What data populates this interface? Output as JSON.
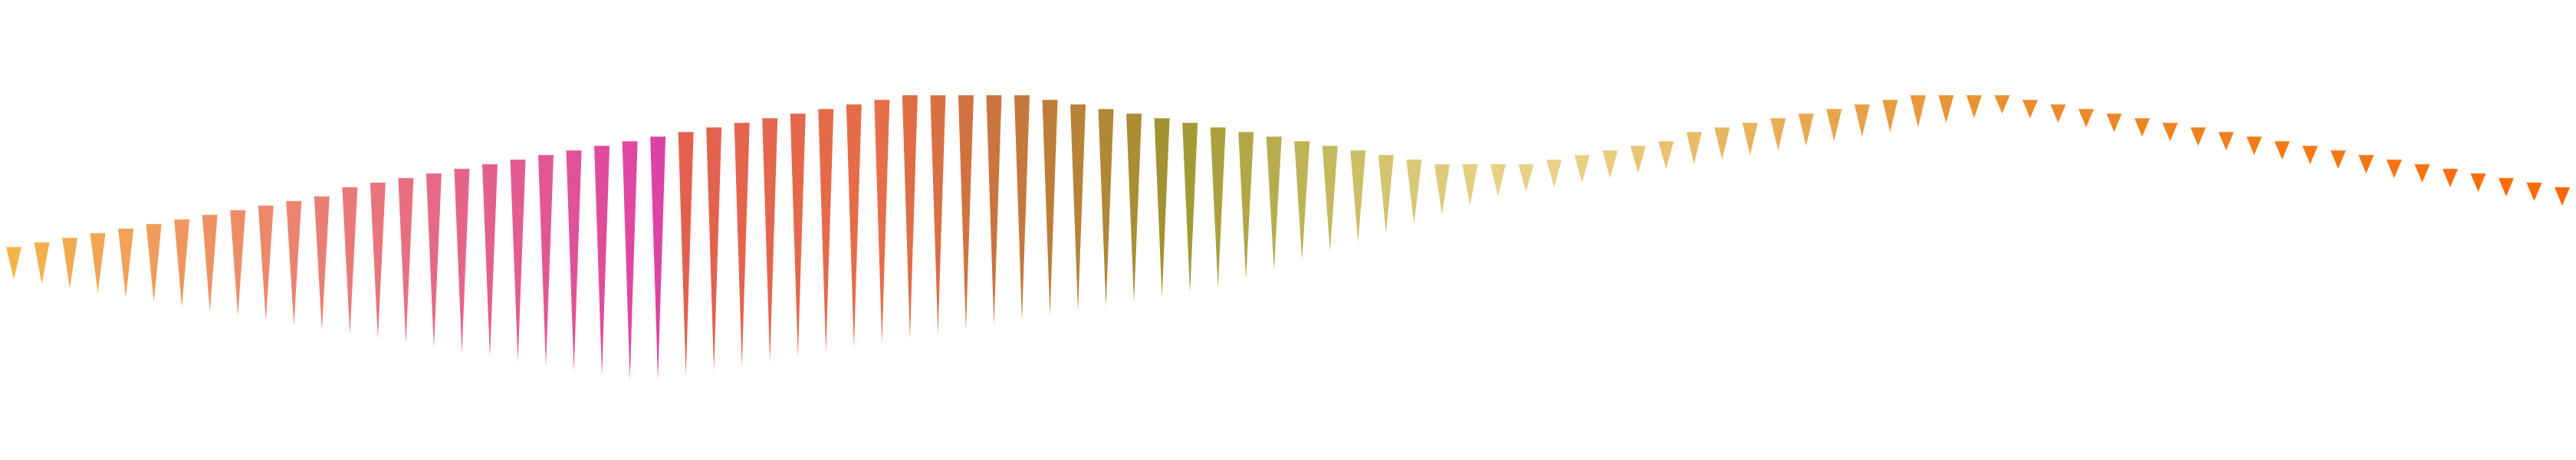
{
  "chart_data": {
    "type": "bar",
    "title": "",
    "xlabel": "",
    "ylabel": "",
    "grid": false,
    "legend": "none",
    "x_start": 0,
    "x_end": 1,
    "ylim": [
      0,
      1
    ],
    "tops": [
      0.463,
      0.473,
      0.483,
      0.493,
      0.503,
      0.513,
      0.523,
      0.533,
      0.543,
      0.553,
      0.563,
      0.573,
      0.593,
      0.603,
      0.613,
      0.623,
      0.633,
      0.643,
      0.653,
      0.663,
      0.673,
      0.683,
      0.693,
      0.703,
      0.713,
      0.723,
      0.733,
      0.743,
      0.753,
      0.763,
      0.773,
      0.783,
      0.793,
      0.793,
      0.793,
      0.793,
      0.793,
      0.783,
      0.773,
      0.763,
      0.753,
      0.743,
      0.733,
      0.723,
      0.713,
      0.703,
      0.693,
      0.683,
      0.673,
      0.663,
      0.653,
      0.643,
      0.643,
      0.643,
      0.643,
      0.653,
      0.663,
      0.673,
      0.683,
      0.693,
      0.713,
      0.723,
      0.733,
      0.743,
      0.753,
      0.763,
      0.773,
      0.783,
      0.793,
      0.793,
      0.793,
      0.793,
      0.783,
      0.773,
      0.763,
      0.753,
      0.743,
      0.733,
      0.723,
      0.713,
      0.703,
      0.693,
      0.683,
      0.673,
      0.663,
      0.653,
      0.643,
      0.633,
      0.623,
      0.613,
      0.603,
      0.593
    ],
    "tips": [
      0.393,
      0.383,
      0.373,
      0.363,
      0.353,
      0.343,
      0.333,
      0.323,
      0.313,
      0.303,
      0.293,
      0.283,
      0.273,
      0.263,
      0.253,
      0.243,
      0.233,
      0.223,
      0.213,
      0.203,
      0.193,
      0.183,
      0.173,
      0.173,
      0.183,
      0.193,
      0.203,
      0.213,
      0.223,
      0.233,
      0.243,
      0.253,
      0.263,
      0.273,
      0.283,
      0.293,
      0.303,
      0.313,
      0.323,
      0.333,
      0.343,
      0.353,
      0.363,
      0.373,
      0.393,
      0.413,
      0.433,
      0.453,
      0.473,
      0.493,
      0.513,
      0.533,
      0.553,
      0.573,
      0.583,
      0.593,
      0.603,
      0.613,
      0.623,
      0.633,
      0.643,
      0.653,
      0.663,
      0.673,
      0.683,
      0.693,
      0.703,
      0.713,
      0.723,
      0.733,
      0.743,
      0.753,
      0.743,
      0.733,
      0.723,
      0.713,
      0.703,
      0.693,
      0.683,
      0.673,
      0.663,
      0.653,
      0.643,
      0.633,
      0.623,
      0.613,
      0.603,
      0.593,
      0.583,
      0.573,
      0.563,
      0.553
    ],
    "colors": [
      "#f5b548",
      "#f4b04c",
      "#f3ab50",
      "#f2a654",
      "#f1a158",
      "#f09c5c",
      "#ef9760",
      "#ee9264",
      "#ed8d68",
      "#ec886c",
      "#eb8370",
      "#ea7e74",
      "#e97978",
      "#e8747c",
      "#e76f80",
      "#e66a84",
      "#e56588",
      "#e4608c",
      "#e35b90",
      "#e25694",
      "#e15198",
      "#e04c9c",
      "#df47a0",
      "#de42a4",
      "#e3604f",
      "#e3624e",
      "#e4644d",
      "#e4664c",
      "#e5684b",
      "#e56a4a",
      "#e66c49",
      "#e66e48",
      "#df6e45",
      "#d87043",
      "#d17241",
      "#ca743f",
      "#c4793c",
      "#bd7e3a",
      "#b78338",
      "#b08836",
      "#aa8d34",
      "#a49232",
      "#a29a35",
      "#a9a13d",
      "#b0a745",
      "#b7ad4d",
      "#beb355",
      "#c5b95d",
      "#ccbf65",
      "#d3c46d",
      "#d9c874",
      "#dfcc7b",
      "#e3cf80",
      "#e6d184",
      "#e8d287",
      "#e9d288",
      "#e9cf84",
      "#e9cb7e",
      "#e9c677",
      "#e9c170",
      "#e9bc69",
      "#e9b762",
      "#e9b25c",
      "#e9ad56",
      "#e9a850",
      "#e9a44b",
      "#e9a046",
      "#e99c41",
      "#e9983c",
      "#e99537",
      "#e99232",
      "#e98f2e",
      "#ea8d2b",
      "#eb8b29",
      "#ec8927",
      "#ed8725",
      "#ee8523",
      "#ef8321",
      "#f0811f",
      "#f17f1d",
      "#f27d1b",
      "#f37b19",
      "#f47917",
      "#f57715",
      "#f67513",
      "#f77311",
      "#f8710f",
      "#f96f0d",
      "#fa6d0b",
      "#fb6b09",
      "#fc6907",
      "#fd6705"
    ]
  }
}
